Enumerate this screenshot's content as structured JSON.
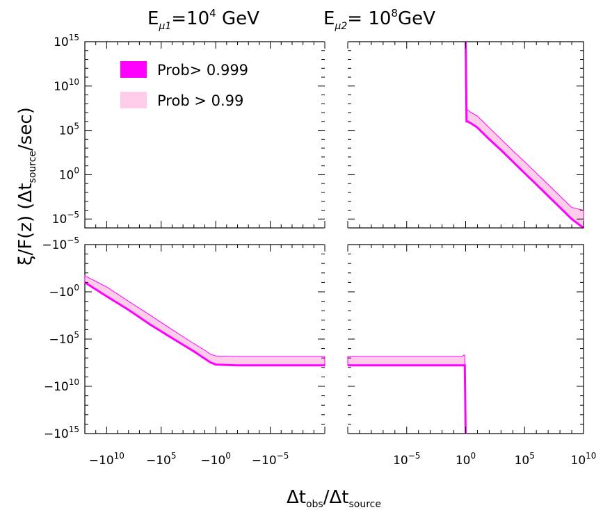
{
  "header": {
    "title_left": {
      "base": "E",
      "sub": "μ1",
      "rest": "=10",
      "sup": "4",
      "unit": " GeV"
    },
    "title_right": {
      "base": "E",
      "sub": "μ2",
      "rest": "= 10",
      "sup": "8",
      "unit": "GeV"
    }
  },
  "chart_data": {
    "type": "area",
    "title": "E_μ1=10^4 GeV   E_μ2= 10^8 GeV",
    "xlabel": {
      "base": "Δt",
      "sub1": "obs",
      "mid": "/Δt",
      "sub2": "source"
    },
    "ylabel": {
      "lead": "ξ/F(z)  (Δt",
      "sub": "source",
      "tail": "/sec)"
    },
    "legend": {
      "position": "top-left",
      "entries": [
        {
          "label": "Prob> 0.999",
          "color": "#ff00ff"
        },
        {
          "label": "Prob > 0.99",
          "color": "#ffccea"
        }
      ]
    },
    "colors": {
      "strong": "#ff00ff",
      "weak": "#ffccea"
    },
    "x_left": {
      "scale": "symlog-negative",
      "range": [
        -1000000000000.0,
        -1e-10
      ],
      "ticks": [
        {
          "value": -10000000000.0,
          "base": "−10",
          "sup": "10"
        },
        {
          "value": -100000.0,
          "base": "−10",
          "sup": "5"
        },
        {
          "value": -1,
          "base": "−10",
          "sup": "0"
        },
        {
          "value": -1e-05,
          "base": "−10",
          "sup": "−5"
        }
      ]
    },
    "x_right": {
      "scale": "log",
      "range": [
        1e-10,
        10000000000.0
      ],
      "ticks": [
        {
          "value": 1e-05,
          "base": "10",
          "sup": "−5"
        },
        {
          "value": 1,
          "base": "10",
          "sup": "0"
        },
        {
          "value": 100000.0,
          "base": "10",
          "sup": "5"
        },
        {
          "value": 10000000000.0,
          "base": "10",
          "sup": "10"
        }
      ]
    },
    "y_top": {
      "scale": "log",
      "range": [
        1e-06,
        1000000000000000.0
      ],
      "ticks": [
        {
          "value": 1000000000000000.0,
          "base": "10",
          "sup": "15"
        },
        {
          "value": 10000000000.0,
          "base": "10",
          "sup": "10"
        },
        {
          "value": 100000.0,
          "base": "10",
          "sup": "5"
        },
        {
          "value": 1,
          "base": "10",
          "sup": "0"
        },
        {
          "value": 1e-05,
          "base": "10",
          "sup": "−5"
        }
      ]
    },
    "y_bottom": {
      "scale": "log-negative",
      "range": [
        -1e-05,
        -1000000000000000.0
      ],
      "ticks": [
        {
          "value": -1e-05,
          "base": "−10",
          "sup": "−5"
        },
        {
          "value": -1,
          "base": "−10",
          "sup": "0"
        },
        {
          "value": -100000.0,
          "base": "−10",
          "sup": "5"
        },
        {
          "value": -10000000000.0,
          "base": "−10",
          "sup": "10"
        },
        {
          "value": -1000000000000000.0,
          "base": "−10",
          "sup": "15"
        }
      ]
    },
    "series": [
      {
        "panel": "bottom-left",
        "x": [
          -1000000000000.0,
          -10000000000.0,
          -100000000.0,
          -1000000.0,
          -10000.0,
          -100.0,
          -10,
          -3,
          -1,
          -0.01,
          -0.0001,
          -1e-06,
          -1e-08,
          -1e-10
        ],
        "y_lower": [
          -0.1,
          -3.0,
          -80.0,
          -3000.0,
          -80000.0,
          -2000000.0,
          -12000000.0,
          -30000000.0,
          -50000000.0,
          -60000000.0,
          -60000000.0,
          -60000000.0,
          -60000000.0,
          -60000000.0
        ],
        "y_upper": [
          -0.02,
          -0.3,
          -10.0,
          -300.0,
          -10000.0,
          -300000.0,
          -1500000.0,
          -4000000.0,
          -6000000.0,
          -7000000.0,
          -7000000.0,
          -7000000.0,
          -7000000.0,
          -7000000.0
        ]
      },
      {
        "panel": "bottom-right",
        "x": [
          1e-10,
          1e-08,
          1e-06,
          0.0001,
          0.01,
          0.2,
          0.5,
          0.7,
          0.85,
          1
        ],
        "y_lower": [
          -60000000.0,
          -60000000.0,
          -60000000.0,
          -60000000.0,
          -60000000.0,
          -60000000.0,
          -60000000.0,
          -60000000.0,
          -60000000.0,
          -1000000000000000.0
        ],
        "y_upper": [
          -7000000.0,
          -7000000.0,
          -7000000.0,
          -7000000.0,
          -7000000.0,
          -7000000.0,
          -7000000.0,
          -5000000.0,
          -5000000.0,
          -1000000000000000.0
        ]
      },
      {
        "panel": "top-right",
        "x": [
          1,
          1.2,
          1.5,
          3,
          10,
          100.0,
          1000.0,
          10000.0,
          100000.0,
          1000000.0,
          10000000.0,
          100000000.0,
          1000000000.0,
          10000000000.0
        ],
        "y_lower": [
          1000000000000000.0,
          1000000.0,
          1000000.0,
          600000.0,
          200000.0,
          10000.0,
          600.0,
          30.0,
          1.5,
          0.08,
          0.004,
          0.0002,
          1e-05,
          1e-06
        ],
        "y_upper": [
          1000000000000000.0,
          30000000.0,
          20000000.0,
          10000000.0,
          4000000.0,
          200000.0,
          10000.0,
          500.0,
          30.0,
          1.5,
          0.08,
          0.004,
          0.0002,
          0.0001
        ]
      }
    ]
  }
}
